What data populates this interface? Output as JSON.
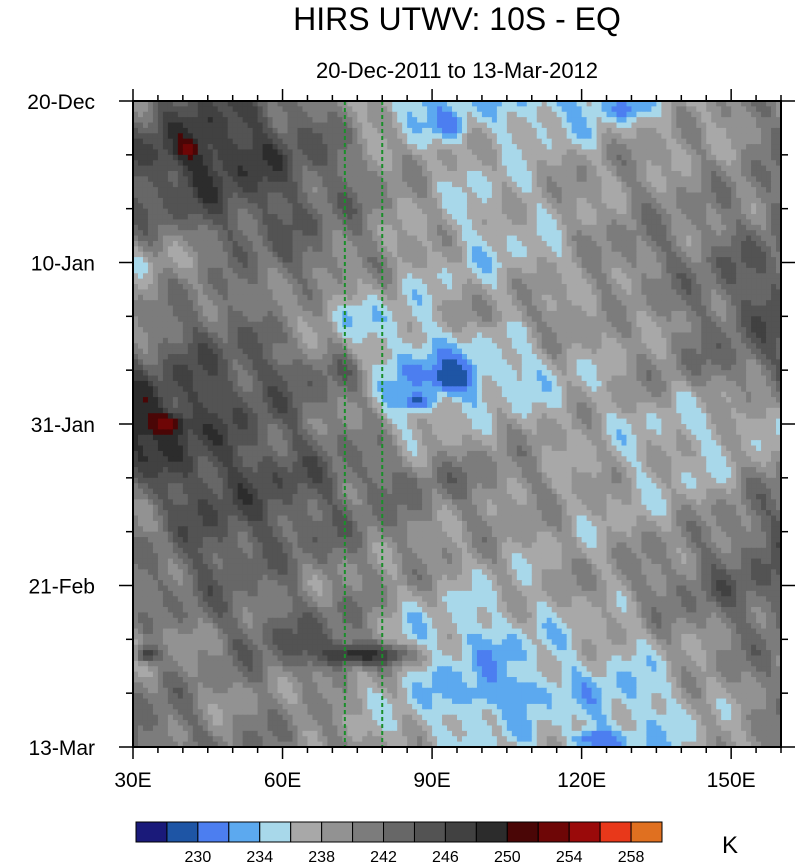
{
  "chart_data": {
    "type": "heatmap",
    "title": "HIRS UTWV: 10S - EQ",
    "subtitle": "20-Dec-2011 to 13-Mar-2012",
    "xlim": [
      30,
      160
    ],
    "x_ticks": [
      {
        "value": 30,
        "label": "30E"
      },
      {
        "value": 60,
        "label": "60E"
      },
      {
        "value": 90,
        "label": "90E"
      },
      {
        "value": 120,
        "label": "120E"
      },
      {
        "value": 150,
        "label": "150E"
      }
    ],
    "y_start": "2011-12-20",
    "y_end": "2012-03-13",
    "y_ticks": [
      {
        "value": "2011-12-20",
        "label": "20-Dec"
      },
      {
        "value": "2012-01-10",
        "label": "10-Jan"
      },
      {
        "value": "2012-01-31",
        "label": "31-Jan"
      },
      {
        "value": "2012-02-21",
        "label": "21-Feb"
      },
      {
        "value": "2012-03-13",
        "label": "13-Mar"
      }
    ],
    "reference_lines_lon": [
      72.5,
      80
    ],
    "reference_line_color": "#1a8f2a",
    "colorbar": {
      "units": "K",
      "levels": [
        228,
        230,
        232,
        234,
        236,
        238,
        240,
        242,
        244,
        246,
        248,
        250,
        252,
        254,
        256,
        258
      ],
      "labels": [
        {
          "value": 230,
          "label": "230"
        },
        {
          "value": 234,
          "label": "234"
        },
        {
          "value": 238,
          "label": "238"
        },
        {
          "value": 242,
          "label": "242"
        },
        {
          "value": 246,
          "label": "246"
        },
        {
          "value": 250,
          "label": "250"
        },
        {
          "value": 254,
          "label": "254"
        },
        {
          "value": 258,
          "label": "258"
        }
      ],
      "colors": [
        "#1a1a7a",
        "#1e55a5",
        "#4c7ef0",
        "#5ca9ef",
        "#a8d8ea",
        "#a8a8a8",
        "#929292",
        "#7c7c7c",
        "#676767",
        "#535353",
        "#414141",
        "#2c2c2c",
        "#4a0606",
        "#6e0606",
        "#9a0a0a",
        "#e8381a",
        "#e07020"
      ]
    },
    "approx_field_description_rows": [
      {
        "date": "2011-12-20",
        "lon_values": [
          [
            30,
            241
          ],
          [
            45,
            246
          ],
          [
            60,
            243
          ],
          [
            72,
            240
          ],
          [
            85,
            233
          ],
          [
            100,
            235
          ],
          [
            115,
            233
          ],
          [
            130,
            236
          ],
          [
            145,
            238
          ],
          [
            160,
            242
          ]
        ]
      },
      {
        "date": "2011-12-27",
        "lon_values": [
          [
            30,
            246
          ],
          [
            45,
            249
          ],
          [
            60,
            246
          ],
          [
            72,
            242
          ],
          [
            85,
            238
          ],
          [
            100,
            237
          ],
          [
            115,
            238
          ],
          [
            130,
            239
          ],
          [
            145,
            239
          ],
          [
            160,
            241
          ]
        ]
      },
      {
        "date": "2012-01-03",
        "lon_values": [
          [
            30,
            243
          ],
          [
            45,
            245
          ],
          [
            60,
            244
          ],
          [
            72,
            242
          ],
          [
            85,
            239
          ],
          [
            100,
            236
          ],
          [
            115,
            238
          ],
          [
            130,
            240
          ],
          [
            145,
            240
          ],
          [
            160,
            242
          ]
        ]
      },
      {
        "date": "2012-01-10",
        "lon_values": [
          [
            30,
            237
          ],
          [
            45,
            240
          ],
          [
            60,
            243
          ],
          [
            72,
            241
          ],
          [
            85,
            238
          ],
          [
            100,
            236
          ],
          [
            115,
            237
          ],
          [
            130,
            241
          ],
          [
            145,
            242
          ],
          [
            160,
            244
          ]
        ]
      },
      {
        "date": "2012-01-17",
        "lon_values": [
          [
            30,
            240
          ],
          [
            45,
            243
          ],
          [
            60,
            240
          ],
          [
            72,
            235
          ],
          [
            85,
            236
          ],
          [
            100,
            239
          ],
          [
            115,
            240
          ],
          [
            130,
            238
          ],
          [
            145,
            242
          ],
          [
            160,
            245
          ]
        ]
      },
      {
        "date": "2012-01-24",
        "lon_values": [
          [
            30,
            244
          ],
          [
            45,
            245
          ],
          [
            60,
            244
          ],
          [
            72,
            242
          ],
          [
            85,
            232
          ],
          [
            100,
            233
          ],
          [
            115,
            236
          ],
          [
            130,
            239
          ],
          [
            145,
            241
          ],
          [
            160,
            243
          ]
        ]
      },
      {
        "date": "2012-01-31",
        "lon_values": [
          [
            30,
            251
          ],
          [
            45,
            246
          ],
          [
            60,
            243
          ],
          [
            72,
            241
          ],
          [
            85,
            236
          ],
          [
            100,
            238
          ],
          [
            115,
            238
          ],
          [
            130,
            237
          ],
          [
            145,
            236
          ],
          [
            160,
            237
          ]
        ]
      },
      {
        "date": "2012-02-07",
        "lon_values": [
          [
            30,
            244
          ],
          [
            45,
            246
          ],
          [
            60,
            245
          ],
          [
            72,
            243
          ],
          [
            85,
            242
          ],
          [
            100,
            241
          ],
          [
            115,
            239
          ],
          [
            130,
            237
          ],
          [
            145,
            237
          ],
          [
            160,
            241
          ]
        ]
      },
      {
        "date": "2012-02-14",
        "lon_values": [
          [
            30,
            240
          ],
          [
            45,
            245
          ],
          [
            60,
            244
          ],
          [
            72,
            242
          ],
          [
            85,
            240
          ],
          [
            100,
            239
          ],
          [
            115,
            238
          ],
          [
            130,
            238
          ],
          [
            145,
            240
          ],
          [
            160,
            244
          ]
        ]
      },
      {
        "date": "2012-02-21",
        "lon_values": [
          [
            30,
            242
          ],
          [
            45,
            243
          ],
          [
            60,
            241
          ],
          [
            72,
            240
          ],
          [
            85,
            239
          ],
          [
            100,
            237
          ],
          [
            115,
            238
          ],
          [
            130,
            240
          ],
          [
            145,
            243
          ],
          [
            160,
            244
          ]
        ]
      },
      {
        "date": "2012-02-28",
        "lon_values": [
          [
            30,
            238
          ],
          [
            45,
            241
          ],
          [
            60,
            244
          ],
          [
            72,
            243
          ],
          [
            85,
            235
          ],
          [
            100,
            234
          ],
          [
            115,
            236
          ],
          [
            130,
            237
          ],
          [
            145,
            240
          ],
          [
            160,
            242
          ]
        ]
      },
      {
        "date": "2012-03-06",
        "lon_values": [
          [
            30,
            242
          ],
          [
            45,
            240
          ],
          [
            60,
            240
          ],
          [
            72,
            238
          ],
          [
            85,
            236
          ],
          [
            100,
            233
          ],
          [
            115,
            235
          ],
          [
            130,
            234
          ],
          [
            145,
            238
          ],
          [
            160,
            241
          ]
        ]
      },
      {
        "date": "2012-03-13",
        "lon_values": [
          [
            30,
            243
          ],
          [
            45,
            241
          ],
          [
            60,
            241
          ],
          [
            72,
            240
          ],
          [
            85,
            237
          ],
          [
            100,
            236
          ],
          [
            115,
            237
          ],
          [
            130,
            234
          ],
          [
            145,
            237
          ],
          [
            160,
            240
          ]
        ]
      }
    ],
    "approx_field_features": [
      {
        "lon": 41,
        "date": "2011-12-26",
        "value": 254,
        "extent_lon": 1.5,
        "extent_days": 1.0
      },
      {
        "lon": 37,
        "date": "2012-01-31",
        "value": 253,
        "extent_lon": 3.5,
        "extent_days": 1.2
      },
      {
        "lon": 94,
        "date": "2012-01-25",
        "value": 228,
        "extent_lon": 4.0,
        "extent_days": 2.0
      },
      {
        "lon": 87,
        "date": "2012-01-28",
        "value": 229,
        "extent_lon": 3.0,
        "extent_days": 1.0
      },
      {
        "lon": 93,
        "date": "2011-12-23",
        "value": 230,
        "extent_lon": 3.0,
        "extent_days": 1.5
      },
      {
        "lon": 128,
        "date": "2011-12-21",
        "value": 231,
        "extent_lon": 4.0,
        "extent_days": 1.5
      },
      {
        "lon": 123,
        "date": "2012-03-12",
        "value": 230,
        "extent_lon": 5.0,
        "extent_days": 1.2
      },
      {
        "lon": 105,
        "date": "2012-03-06",
        "value": 232,
        "extent_lon": 8.0,
        "extent_days": 2.0
      },
      {
        "lon": 33,
        "date": "2012-03-01",
        "value": 248,
        "extent_lon": 2.0,
        "extent_days": 1.0
      },
      {
        "lon": 76,
        "date": "2012-03-01",
        "value": 249,
        "extent_lon": 10.0,
        "extent_days": 1.5
      }
    ]
  }
}
